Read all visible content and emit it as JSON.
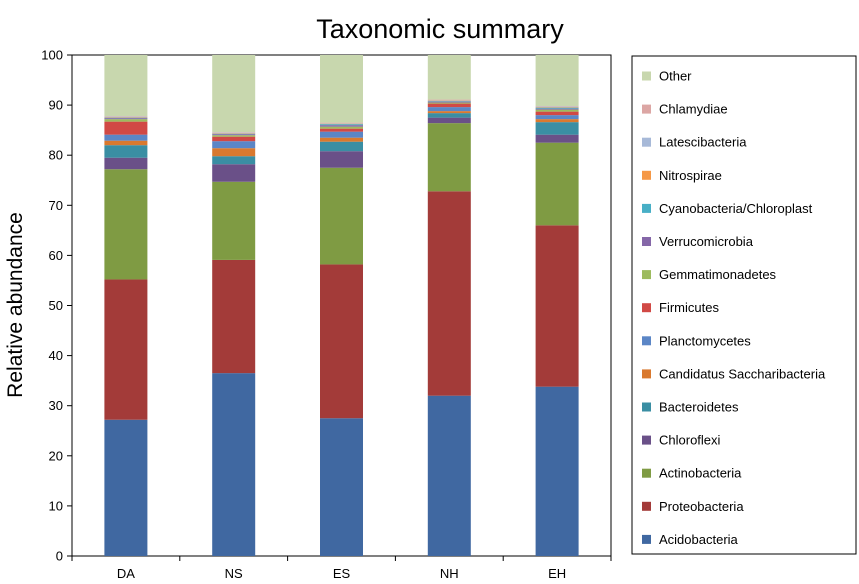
{
  "chart_data": {
    "type": "bar",
    "stacked": true,
    "title": "Taxonomic summary",
    "xlabel": "",
    "ylabel": "Relative abundance",
    "ylim": [
      0,
      100
    ],
    "yticks": [
      0,
      10,
      20,
      30,
      40,
      50,
      60,
      70,
      80,
      90,
      100
    ],
    "grid": false,
    "legend_position": "right",
    "categories": [
      "DA",
      "NS",
      "ES",
      "NH",
      "EH"
    ],
    "series": [
      {
        "name": "Acidobacteria",
        "color": "#4068A1",
        "values": [
          27.2,
          36.5,
          27.5,
          32.0,
          33.8
        ]
      },
      {
        "name": "Proteobacteria",
        "color": "#A33B39",
        "values": [
          28.0,
          22.6,
          30.7,
          40.8,
          32.2
        ]
      },
      {
        "name": "Actinobacteria",
        "color": "#7F9B43",
        "values": [
          22.0,
          15.6,
          19.3,
          13.6,
          16.5
        ]
      },
      {
        "name": "Chloroflexi",
        "color": "#6A5088",
        "values": [
          2.3,
          3.5,
          3.3,
          1.1,
          1.6
        ]
      },
      {
        "name": "Bacteroidetes",
        "color": "#3A8EA3",
        "values": [
          2.5,
          1.6,
          1.9,
          0.9,
          2.5
        ]
      },
      {
        "name": "Candidatus Saccharibacteria",
        "color": "#D9792F",
        "values": [
          0.9,
          1.6,
          0.8,
          0.4,
          0.6
        ]
      },
      {
        "name": "Planctomycetes",
        "color": "#5B86C6",
        "values": [
          1.2,
          1.4,
          1.2,
          0.8,
          0.8
        ]
      },
      {
        "name": "Firmicutes",
        "color": "#D14945",
        "values": [
          2.6,
          0.9,
          0.6,
          0.7,
          0.7
        ]
      },
      {
        "name": "Gemmatimonadetes",
        "color": "#9DBB5E",
        "values": [
          0.5,
          0.3,
          0.4,
          0.2,
          0.4
        ]
      },
      {
        "name": "Verrucomicrobia",
        "color": "#8567A8",
        "values": [
          0.2,
          0.2,
          0.3,
          0.2,
          0.2
        ]
      },
      {
        "name": "Cyanobacteria/Chloroplast",
        "color": "#48AFC6",
        "values": [
          0.1,
          0.1,
          0.2,
          0.1,
          0.2
        ]
      },
      {
        "name": "Nitrospirae",
        "color": "#F59846",
        "values": [
          0.1,
          0.1,
          0.1,
          0.1,
          0.1
        ]
      },
      {
        "name": "Latescibacteria",
        "color": "#A7B9D8",
        "values": [
          0.1,
          0.1,
          0.1,
          0.1,
          0.1
        ]
      },
      {
        "name": "Chlamydiae",
        "color": "#DCA6A4",
        "values": [
          0.1,
          0.1,
          0.1,
          0.1,
          0.1
        ]
      },
      {
        "name": "Other",
        "color": "#C8D7AE",
        "values": [
          12.2,
          15.4,
          13.5,
          8.9,
          10.2
        ]
      }
    ]
  }
}
